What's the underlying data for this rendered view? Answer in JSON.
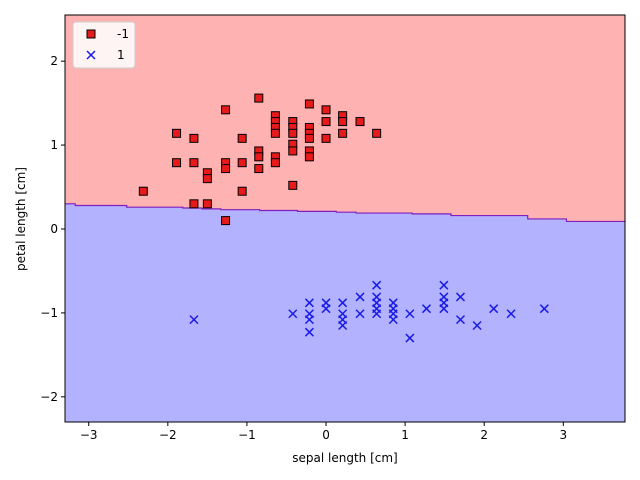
{
  "chart_data": {
    "type": "scatter",
    "title": "",
    "xlabel": "sepal length [cm]",
    "ylabel": "petal length [cm]",
    "xlim": [
      -3.3,
      3.78
    ],
    "ylim": [
      -2.3,
      2.55
    ],
    "xticks": [
      -3,
      -2,
      -1,
      0,
      1,
      2,
      3
    ],
    "yticks": [
      -2,
      -1,
      0,
      1,
      2
    ],
    "grid": false,
    "legend_position": "upper-left",
    "regions": [
      {
        "class": "-1",
        "color": "#ffb2b2"
      },
      {
        "class": "1",
        "color": "#b2b2ff"
      }
    ],
    "decision_boundary": {
      "color": "#7f1fbf",
      "x": [
        -3.3,
        -3.17,
        -2.52,
        -1.81,
        -1.57,
        -1.33,
        -0.84,
        -0.36,
        0.13,
        0.38,
        1.09,
        1.58,
        2.55,
        3.04,
        3.78
      ],
      "y": [
        0.3,
        0.28,
        0.26,
        0.25,
        0.24,
        0.23,
        0.22,
        0.21,
        0.2,
        0.19,
        0.18,
        0.16,
        0.12,
        0.09,
        0.08
      ]
    },
    "series": [
      {
        "name": "-1",
        "marker": "square",
        "color": "#e61a1a",
        "edgecolor": "#000000",
        "points": [
          [
            -2.31,
            0.45
          ],
          [
            -1.89,
            1.14
          ],
          [
            -1.89,
            0.79
          ],
          [
            -1.67,
            1.08
          ],
          [
            -1.67,
            0.79
          ],
          [
            -1.67,
            0.3
          ],
          [
            -1.5,
            0.67
          ],
          [
            -1.5,
            0.6
          ],
          [
            -1.5,
            0.3
          ],
          [
            -1.27,
            1.42
          ],
          [
            -1.27,
            0.79
          ],
          [
            -1.27,
            0.72
          ],
          [
            -1.27,
            0.1
          ],
          [
            -1.06,
            1.08
          ],
          [
            -1.06,
            0.79
          ],
          [
            -1.06,
            0.45
          ],
          [
            -0.85,
            1.56
          ],
          [
            -0.85,
            0.93
          ],
          [
            -0.85,
            0.86
          ],
          [
            -0.85,
            0.72
          ],
          [
            -0.64,
            1.35
          ],
          [
            -0.64,
            1.28
          ],
          [
            -0.64,
            1.21
          ],
          [
            -0.64,
            1.14
          ],
          [
            -0.64,
            0.86
          ],
          [
            -0.64,
            0.79
          ],
          [
            -0.42,
            1.28
          ],
          [
            -0.42,
            1.21
          ],
          [
            -0.42,
            1.14
          ],
          [
            -0.42,
            1.01
          ],
          [
            -0.42,
            0.93
          ],
          [
            -0.42,
            0.52
          ],
          [
            -0.21,
            1.49
          ],
          [
            -0.21,
            1.21
          ],
          [
            -0.21,
            1.14
          ],
          [
            -0.21,
            1.08
          ],
          [
            -0.21,
            0.93
          ],
          [
            -0.21,
            0.86
          ],
          [
            0.0,
            1.42
          ],
          [
            0.0,
            1.28
          ],
          [
            0.0,
            1.08
          ],
          [
            0.21,
            1.35
          ],
          [
            0.21,
            1.28
          ],
          [
            0.21,
            1.14
          ],
          [
            0.43,
            1.28
          ],
          [
            0.64,
            1.14
          ]
        ]
      },
      {
        "name": "1",
        "marker": "x",
        "color": "#1a1ae6",
        "points": [
          [
            -1.67,
            -1.08
          ],
          [
            -0.42,
            -1.01
          ],
          [
            -0.21,
            -0.88
          ],
          [
            -0.21,
            -1.01
          ],
          [
            -0.21,
            -1.08
          ],
          [
            -0.21,
            -1.23
          ],
          [
            0.0,
            -0.88
          ],
          [
            0.0,
            -0.95
          ],
          [
            0.21,
            -0.88
          ],
          [
            0.21,
            -1.01
          ],
          [
            0.21,
            -1.08
          ],
          [
            0.21,
            -1.15
          ],
          [
            0.43,
            -0.81
          ],
          [
            0.43,
            -1.01
          ],
          [
            0.64,
            -0.67
          ],
          [
            0.64,
            -0.81
          ],
          [
            0.64,
            -0.88
          ],
          [
            0.64,
            -0.95
          ],
          [
            0.64,
            -1.01
          ],
          [
            0.85,
            -0.88
          ],
          [
            0.85,
            -0.95
          ],
          [
            0.85,
            -1.01
          ],
          [
            0.85,
            -1.08
          ],
          [
            1.06,
            -1.01
          ],
          [
            1.06,
            -1.3
          ],
          [
            1.27,
            -0.95
          ],
          [
            1.49,
            -0.67
          ],
          [
            1.49,
            -0.81
          ],
          [
            1.49,
            -0.88
          ],
          [
            1.49,
            -0.95
          ],
          [
            1.7,
            -0.81
          ],
          [
            1.7,
            -1.08
          ],
          [
            1.91,
            -1.15
          ],
          [
            2.12,
            -0.95
          ],
          [
            2.34,
            -1.01
          ],
          [
            2.76,
            -0.95
          ]
        ]
      }
    ]
  }
}
